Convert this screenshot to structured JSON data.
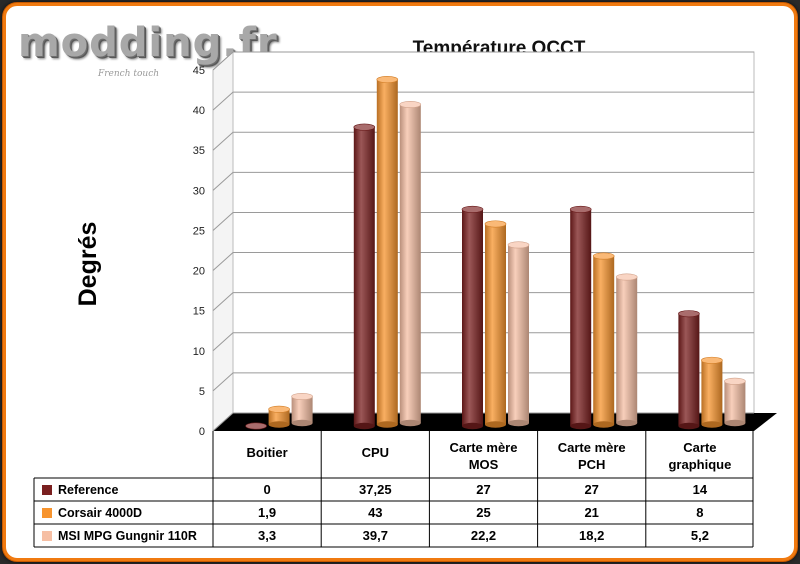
{
  "brand": {
    "logo_text": "modding.fr",
    "logo_tagline": "French touch"
  },
  "chart_data": {
    "type": "bar",
    "title": "Température OCCT",
    "ylabel": "Degrés",
    "xlabel": "",
    "ylim": [
      0,
      45
    ],
    "yticks": [
      0,
      5,
      10,
      15,
      20,
      25,
      30,
      35,
      40,
      45
    ],
    "grid": true,
    "legend_position": "table-below",
    "categories": [
      "Boitier",
      "CPU",
      "Carte mère MOS",
      "Carte mère PCH",
      "Carte graphique"
    ],
    "series": [
      {
        "name": "Reference",
        "color": "#7a1f1f",
        "values": [
          0,
          37.25,
          27,
          27,
          14
        ],
        "labels": [
          "0",
          "37,25",
          "27",
          "27",
          "14"
        ]
      },
      {
        "name": "Corsair 4000D",
        "color": "#f7942e",
        "values": [
          1.9,
          43,
          25,
          21,
          8
        ],
        "labels": [
          "1,9",
          "43",
          "25",
          "21",
          "8"
        ]
      },
      {
        "name": "MSI MPG Gungnir 110R",
        "color": "#f6bfa4",
        "values": [
          3.3,
          39.7,
          22.2,
          18.2,
          5.2
        ],
        "labels": [
          "3,3",
          "39,7",
          "22,2",
          "18,2",
          "5,2"
        ]
      }
    ]
  }
}
